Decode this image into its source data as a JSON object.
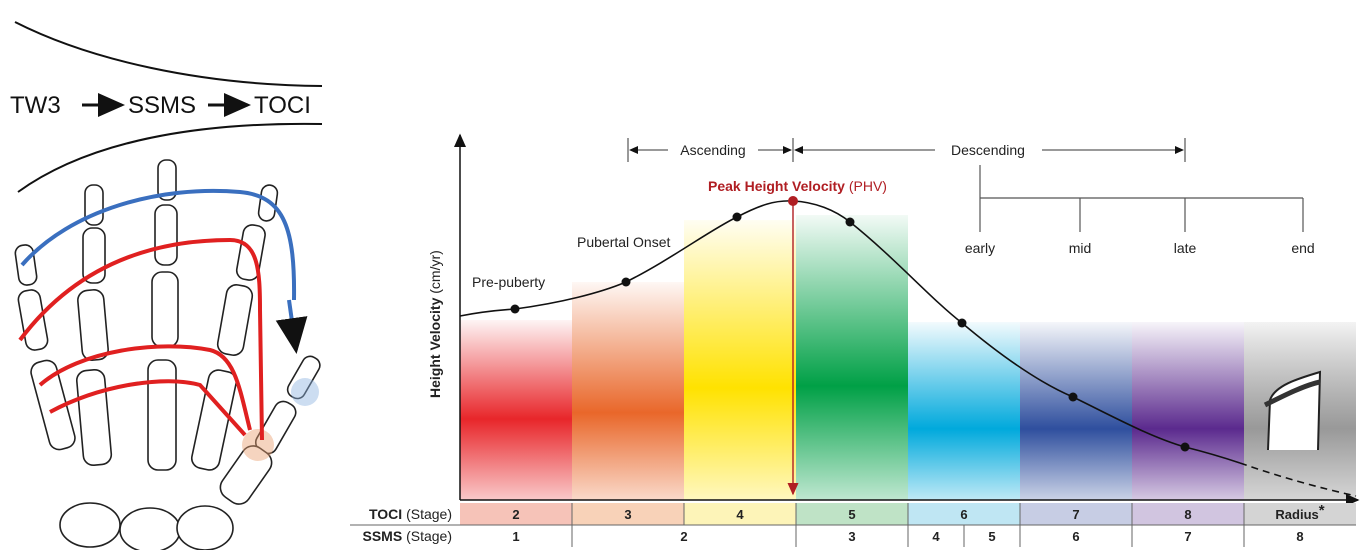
{
  "sequence": {
    "steps": [
      "TW3",
      "SSMS",
      "TOCI"
    ]
  },
  "chart": {
    "y_axis": {
      "label": "Height Velocity",
      "unit": "(cm/yr)"
    },
    "phases": {
      "ascending": "Ascending",
      "descending": "Descending"
    },
    "peak": {
      "label": "Peak Height Velocity",
      "abbr": "(PHV)"
    },
    "annotations": {
      "onset": "Pubertal Onset",
      "pre": "Pre-puberty"
    },
    "descending_stages": [
      "early",
      "mid",
      "late",
      "end"
    ]
  },
  "toci_row": {
    "label": "TOCI",
    "unit": "(Stage)",
    "stages": [
      "2",
      "3",
      "4",
      "5",
      "6",
      "7",
      "8",
      "Radius"
    ],
    "note": "*"
  },
  "ssms_row": {
    "label": "SSMS",
    "unit": "(Stage)",
    "stages": [
      "1",
      "2",
      "3",
      "4",
      "5",
      "6",
      "7",
      "8"
    ]
  }
}
